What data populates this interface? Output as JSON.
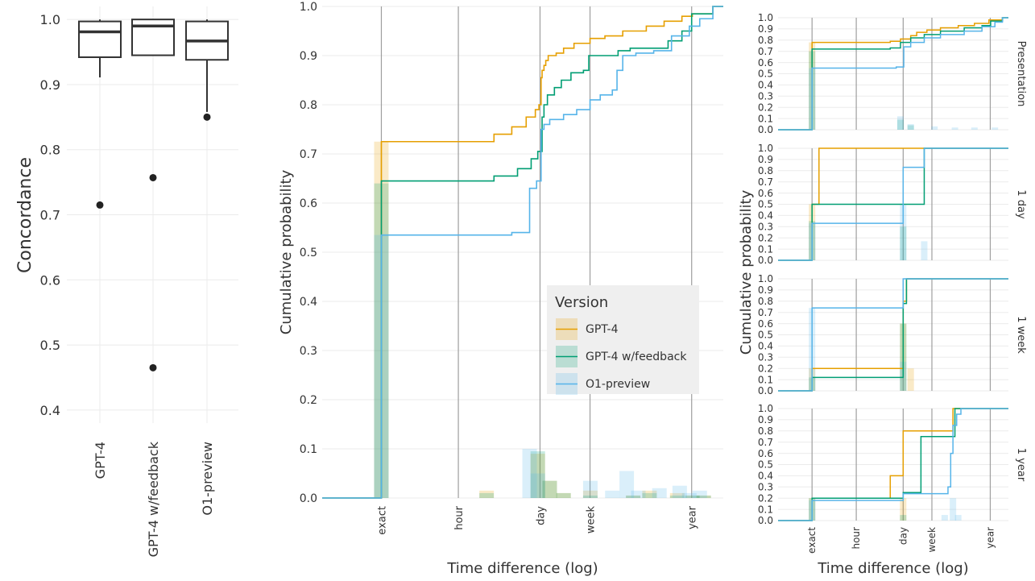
{
  "colors": {
    "gpt4": "#E69F00",
    "feedback": "#009E73",
    "o1": "#56B4E9",
    "grid": "#ebebeb",
    "vline": "#9e9e9e",
    "text": "#333333",
    "strip": "#333333"
  },
  "chart_data": [
    {
      "type": "boxplot",
      "title": "",
      "xlabel": "",
      "ylabel": "Concordance",
      "ylim": [
        0.38,
        1.02
      ],
      "yticks": [
        0.4,
        0.5,
        0.6,
        0.7,
        0.8,
        0.9,
        1.0
      ],
      "ytick_labels": [
        "0.4",
        "0.5",
        "0.6",
        "0.7",
        "0.8",
        "0.9",
        "1.0"
      ],
      "categories": [
        "GPT-4",
        "GPT-4 w/feedback",
        "O1-preview"
      ],
      "boxes": [
        {
          "name": "GPT-4",
          "q1": 0.942,
          "median": 0.981,
          "q3": 0.997,
          "whisker_low": 0.911,
          "whisker_high": 1.0,
          "outliers": [
            0.715
          ]
        },
        {
          "name": "GPT-4 w/feedback",
          "q1": 0.945,
          "median": 0.99,
          "q3": 1.0,
          "whisker_low": 0.945,
          "whisker_high": 1.0,
          "outliers": [
            0.757,
            0.465
          ]
        },
        {
          "name": "O1-preview",
          "q1": 0.938,
          "median": 0.967,
          "q3": 0.997,
          "whisker_low": 0.858,
          "whisker_high": 1.0,
          "outliers": [
            0.85
          ]
        }
      ]
    },
    {
      "type": "line",
      "subtype": "ecdf-step-with-histogram",
      "title": "",
      "xlabel": "Time difference (log)",
      "ylabel": "Cumulative probability",
      "x_scale": "log (hours)",
      "xlim": [
        0.005,
        30000
      ],
      "ylim": [
        0,
        1
      ],
      "yticks": [
        0,
        0.1,
        0.2,
        0.3,
        0.4,
        0.5,
        0.6,
        0.7,
        0.8,
        0.9,
        1.0
      ],
      "ytick_labels": [
        "0.0",
        "0.1",
        "0.2",
        "0.3",
        "0.4",
        "0.5",
        "0.6",
        "0.7",
        "0.8",
        "0.9",
        "1.0"
      ],
      "xticks": [
        0.05,
        1,
        24,
        168,
        8760
      ],
      "xtick_labels": [
        "exact",
        "hour",
        "day",
        "week",
        "year"
      ],
      "legend": {
        "title": "Version",
        "placement": "center-right",
        "entries": [
          "GPT-4",
          "GPT-4 w/feedback",
          "O1-preview"
        ]
      },
      "series": [
        {
          "name": "GPT-4",
          "color_key": "gpt4",
          "x": [
            0.05,
            4,
            8,
            14,
            20,
            23,
            25,
            26,
            28,
            30,
            33,
            45,
            60,
            90,
            168,
            300,
            600,
            1500,
            3000,
            6000,
            9000,
            20000
          ],
          "y": [
            0.725,
            0.74,
            0.755,
            0.775,
            0.79,
            0.8,
            0.855,
            0.87,
            0.88,
            0.89,
            0.9,
            0.905,
            0.915,
            0.925,
            0.935,
            0.94,
            0.95,
            0.96,
            0.97,
            0.98,
            0.985,
            1.0
          ]
        },
        {
          "name": "GPT-4 w/feedback",
          "color_key": "feedback",
          "x": [
            0.05,
            4,
            10,
            17,
            22,
            26,
            28,
            32,
            42,
            55,
            80,
            130,
            160,
            500,
            800,
            3500,
            6000,
            8760,
            20000
          ],
          "y": [
            0.645,
            0.655,
            0.67,
            0.69,
            0.705,
            0.775,
            0.8,
            0.82,
            0.835,
            0.85,
            0.865,
            0.87,
            0.9,
            0.91,
            0.915,
            0.93,
            0.95,
            0.985,
            1.0
          ]
        },
        {
          "name": "O1-preview",
          "color_key": "o1",
          "x": [
            0.05,
            8,
            16,
            21,
            25,
            28,
            35,
            60,
            100,
            168,
            250,
            400,
            480,
            600,
            1000,
            2000,
            4000,
            8000,
            12000,
            20000
          ],
          "y": [
            0.535,
            0.54,
            0.63,
            0.645,
            0.75,
            0.76,
            0.77,
            0.78,
            0.79,
            0.81,
            0.82,
            0.83,
            0.87,
            0.9,
            0.905,
            0.91,
            0.94,
            0.96,
            0.975,
            1.0
          ]
        }
      ],
      "histograms": [
        {
          "name": "GPT-4",
          "color_key": "gpt4",
          "x": [
            0.05,
            3,
            22,
            35,
            60,
            170,
            900,
            1700,
            5000,
            9000,
            14000
          ],
          "values": [
            0.725,
            0.015,
            0.09,
            0.035,
            0.01,
            0.015,
            0.005,
            0.015,
            0.01,
            0.005,
            0.005
          ]
        },
        {
          "name": "GPT-4 w/feedback",
          "color_key": "feedback",
          "x": [
            0.05,
            3,
            22,
            35,
            60,
            170,
            900,
            1700,
            5000,
            9000,
            14000
          ],
          "values": [
            0.64,
            0.01,
            0.095,
            0.035,
            0.01,
            0.005,
            0.005,
            0.01,
            0.005,
            0.005,
            0.005
          ]
        },
        {
          "name": "O1-preview",
          "color_key": "o1",
          "x": [
            0.05,
            16,
            22,
            170,
            400,
            700,
            1100,
            2500,
            5500,
            8000,
            12000
          ],
          "values": [
            0.535,
            0.1,
            0.05,
            0.035,
            0.015,
            0.055,
            0.015,
            0.02,
            0.025,
            0.01,
            0.015
          ]
        }
      ]
    },
    {
      "type": "line",
      "subtype": "faceted-ecdf-step-with-histogram",
      "title": "",
      "xlabel": "Time difference (log)",
      "ylabel": "Cumulative probability",
      "x_scale": "log (hours)",
      "xlim": [
        0.005,
        30000
      ],
      "ylim": [
        0,
        1
      ],
      "yticks": [
        0,
        0.1,
        0.2,
        0.3,
        0.4,
        0.5,
        0.6,
        0.7,
        0.8,
        0.9,
        1.0
      ],
      "ytick_labels": [
        "0.0",
        "0.1",
        "0.2",
        "0.3",
        "0.4",
        "0.5",
        "0.6",
        "0.7",
        "0.8",
        "0.9",
        "1.0"
      ],
      "xticks": [
        0.05,
        1,
        24,
        168,
        8760
      ],
      "xtick_labels": [
        "exact",
        "hour",
        "day",
        "week",
        "year"
      ],
      "facets": [
        {
          "label": "Presentation",
          "series": [
            {
              "name": "GPT-4",
              "color_key": "gpt4",
              "x": [
                0.05,
                10,
                20,
                40,
                60,
                120,
                300,
                1000,
                3000,
                8000,
                20000
              ],
              "y": [
                0.78,
                0.79,
                0.81,
                0.84,
                0.87,
                0.89,
                0.91,
                0.93,
                0.95,
                0.98,
                1.0
              ]
            },
            {
              "name": "GPT-4 w/feedback",
              "color_key": "feedback",
              "x": [
                0.05,
                10,
                20,
                40,
                100,
                300,
                1500,
                5000,
                9000,
                20000
              ],
              "y": [
                0.72,
                0.73,
                0.78,
                0.82,
                0.85,
                0.88,
                0.91,
                0.93,
                0.97,
                1.0
              ]
            },
            {
              "name": "O1-preview",
              "color_key": "o1",
              "x": [
                0.05,
                15,
                25,
                40,
                100,
                300,
                1500,
                5000,
                12000,
                20000
              ],
              "y": [
                0.55,
                0.56,
                0.74,
                0.78,
                0.82,
                0.85,
                0.88,
                0.92,
                0.96,
                1.0
              ]
            }
          ],
          "histograms": [
            {
              "name": "GPT-4",
              "color_key": "gpt4",
              "x": [
                0.05
              ],
              "values": [
                0.78
              ]
            },
            {
              "name": "GPT-4 w/feedback",
              "color_key": "feedback",
              "x": [
                0.05,
                20,
                40
              ],
              "values": [
                0.7,
                0.09,
                0.04
              ]
            },
            {
              "name": "O1-preview",
              "color_key": "o1",
              "x": [
                0.05,
                20,
                40,
                200,
                800,
                3000,
                12000
              ],
              "values": [
                0.55,
                0.12,
                0.05,
                0.03,
                0.02,
                0.02,
                0.02
              ]
            }
          ]
        },
        {
          "label": "1 day",
          "series": [
            {
              "name": "GPT-4",
              "color_key": "gpt4",
              "x": [
                0.05,
                0.08,
                20000
              ],
              "y": [
                0.5,
                1.0,
                1.0
              ]
            },
            {
              "name": "GPT-4 w/feedback",
              "color_key": "feedback",
              "x": [
                0.05,
                24,
                100,
                20000
              ],
              "y": [
                0.5,
                0.5,
                1.0,
                1.0
              ]
            },
            {
              "name": "O1-preview",
              "color_key": "o1",
              "x": [
                0.05,
                24,
                100,
                20000
              ],
              "y": [
                0.33,
                0.83,
                1.0,
                1.0
              ]
            }
          ],
          "histograms": [
            {
              "name": "GPT-4",
              "color_key": "gpt4",
              "x": [
                0.05
              ],
              "values": [
                0.5
              ]
            },
            {
              "name": "GPT-4 w/feedback",
              "color_key": "feedback",
              "x": [
                0.05,
                24
              ],
              "values": [
                0.35,
                0.3
              ]
            },
            {
              "name": "O1-preview",
              "color_key": "o1",
              "x": [
                0.05,
                24,
                100
              ],
              "values": [
                0.33,
                0.5,
                0.17
              ]
            }
          ]
        },
        {
          "label": "1 week",
          "series": [
            {
              "name": "GPT-4",
              "color_key": "gpt4",
              "x": [
                0.05,
                24,
                30,
                20000
              ],
              "y": [
                0.2,
                0.8,
                1.0,
                1.0
              ]
            },
            {
              "name": "GPT-4 w/feedback",
              "color_key": "feedback",
              "x": [
                0.05,
                24,
                30,
                20000
              ],
              "y": [
                0.12,
                0.78,
                1.0,
                1.0
              ]
            },
            {
              "name": "O1-preview",
              "color_key": "o1",
              "x": [
                0.05,
                24,
                20000
              ],
              "y": [
                0.74,
                1.0,
                1.0
              ]
            }
          ],
          "histograms": [
            {
              "name": "GPT-4",
              "color_key": "gpt4",
              "x": [
                0.05,
                24,
                40
              ],
              "values": [
                0.2,
                0.6,
                0.2
              ]
            },
            {
              "name": "GPT-4 w/feedback",
              "color_key": "feedback",
              "x": [
                0.05,
                24
              ],
              "values": [
                0.12,
                0.6
              ]
            },
            {
              "name": "O1-preview",
              "color_key": "o1",
              "x": [
                0.05,
                24
              ],
              "values": [
                0.74,
                0.26
              ]
            }
          ]
        },
        {
          "label": "1 year",
          "series": [
            {
              "name": "GPT-4",
              "color_key": "gpt4",
              "x": [
                0.05,
                10,
                24,
                170,
                700,
                800,
                20000
              ],
              "y": [
                0.2,
                0.4,
                0.8,
                0.8,
                1.0,
                1.0,
                1.0
              ]
            },
            {
              "name": "GPT-4 w/feedback",
              "color_key": "feedback",
              "x": [
                0.05,
                24,
                80,
                800,
                20000
              ],
              "y": [
                0.2,
                0.25,
                0.75,
                1.0,
                1.0
              ]
            },
            {
              "name": "O1-preview",
              "color_key": "o1",
              "x": [
                0.05,
                24,
                500,
                600,
                700,
                900,
                1200,
                20000
              ],
              "y": [
                0.18,
                0.24,
                0.3,
                0.6,
                0.85,
                0.95,
                1.0,
                1.0
              ]
            }
          ],
          "histograms": [
            {
              "name": "GPT-4",
              "color_key": "gpt4",
              "x": [
                0.05,
                24
              ],
              "values": [
                0.2,
                0.2
              ]
            },
            {
              "name": "GPT-4 w/feedback",
              "color_key": "feedback",
              "x": [
                0.05,
                24
              ],
              "values": [
                0.2,
                0.05
              ]
            },
            {
              "name": "O1-preview",
              "color_key": "o1",
              "x": [
                0.05,
                400,
                700,
                1000
              ],
              "values": [
                0.18,
                0.05,
                0.2,
                0.05
              ]
            }
          ]
        }
      ]
    }
  ]
}
